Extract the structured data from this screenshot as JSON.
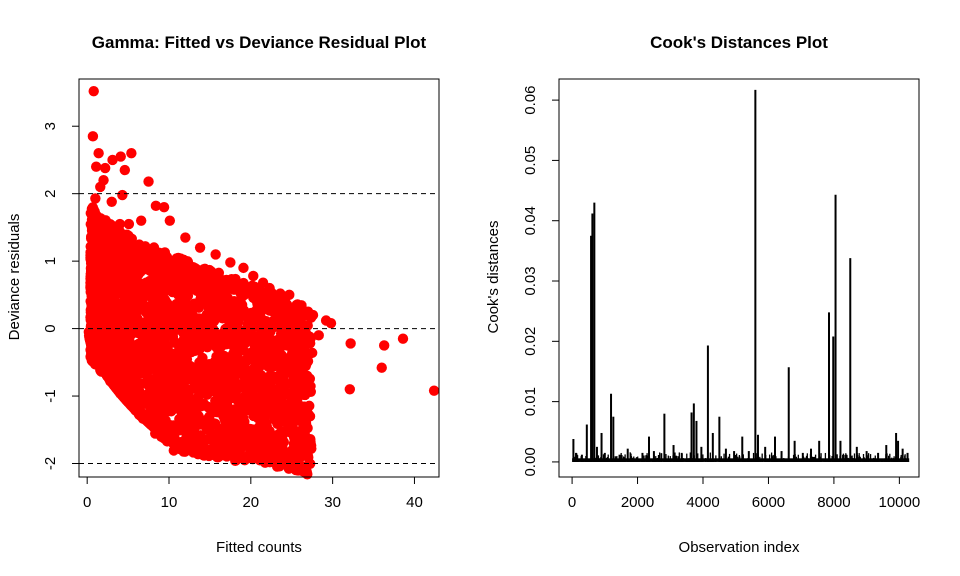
{
  "chart_data": [
    {
      "type": "scatter",
      "title": "Gamma: Fitted vs Deviance Residual Plot",
      "xlabel": "Fitted counts",
      "ylabel": "Deviance residuals",
      "xlim": [
        -1,
        43
      ],
      "ylim": [
        -2.2,
        3.7
      ],
      "xticks": [
        0,
        10,
        20,
        30,
        40
      ],
      "yticks": [
        -2,
        -1,
        0,
        1,
        2,
        3
      ],
      "ytick_labels": [
        "-2",
        "-1",
        "0",
        "1",
        "2",
        "3"
      ],
      "reference_lines": [
        -2,
        0,
        2
      ],
      "point_color": "#ff0000",
      "grid": false,
      "legend": "none",
      "points": [
        [
          0.8,
          3.52
        ],
        [
          0.7,
          2.85
        ],
        [
          1.4,
          2.6
        ],
        [
          1.1,
          2.4
        ],
        [
          2.2,
          2.38
        ],
        [
          3.1,
          2.5
        ],
        [
          4.1,
          2.55
        ],
        [
          5.4,
          2.6
        ],
        [
          4.6,
          2.35
        ],
        [
          2.0,
          2.2
        ],
        [
          1.6,
          2.1
        ],
        [
          7.5,
          2.18
        ],
        [
          4.3,
          1.98
        ],
        [
          1.0,
          1.93
        ],
        [
          3.0,
          1.88
        ],
        [
          8.4,
          1.82
        ],
        [
          9.4,
          1.8
        ],
        [
          10.1,
          1.6
        ],
        [
          6.6,
          1.6
        ],
        [
          5.1,
          1.55
        ],
        [
          4.0,
          1.55
        ],
        [
          12.0,
          1.35
        ],
        [
          13.8,
          1.2
        ],
        [
          15.7,
          1.1
        ],
        [
          17.5,
          0.98
        ],
        [
          19.1,
          0.9
        ],
        [
          20.3,
          0.78
        ],
        [
          21.5,
          0.68
        ],
        [
          22.3,
          0.6
        ],
        [
          23.6,
          0.52
        ],
        [
          24.7,
          0.5
        ],
        [
          25.6,
          0.35
        ],
        [
          26.2,
          0.32
        ],
        [
          27.6,
          0.2
        ],
        [
          29.2,
          0.12
        ],
        [
          29.8,
          0.08
        ],
        [
          28.3,
          -0.1
        ],
        [
          27.2,
          -0.12
        ],
        [
          26.4,
          -0.2
        ],
        [
          25.2,
          -0.22
        ],
        [
          23.6,
          -0.28
        ],
        [
          22.3,
          -0.38
        ],
        [
          21.5,
          -0.5
        ],
        [
          20.3,
          -0.6
        ],
        [
          19.2,
          -0.66
        ],
        [
          17.6,
          -0.72
        ],
        [
          16.1,
          -0.8
        ],
        [
          27.5,
          -0.36
        ],
        [
          26.3,
          -0.48
        ],
        [
          25.4,
          -0.58
        ],
        [
          24.1,
          -0.63
        ],
        [
          22.1,
          -0.72
        ],
        [
          18.5,
          -0.85
        ],
        [
          14.6,
          -0.86
        ],
        [
          15.3,
          -0.8
        ],
        [
          13.1,
          -0.82
        ],
        [
          12.6,
          -1.3
        ],
        [
          11.8,
          -1.35
        ],
        [
          11.3,
          -1.75
        ],
        [
          10.5,
          -1.7
        ],
        [
          27.0,
          -0.85
        ],
        [
          23.5,
          -1.0
        ],
        [
          32.2,
          -0.22
        ],
        [
          32.1,
          -0.9
        ],
        [
          36.3,
          -0.25
        ],
        [
          36.0,
          -0.58
        ],
        [
          38.6,
          -0.15
        ],
        [
          42.4,
          -0.92
        ],
        [
          26.9,
          -2.16
        ]
      ]
    },
    {
      "type": "line",
      "title": "Cook's Distances Plot",
      "xlabel": "Observation index",
      "ylabel": "Cook's distances",
      "xlim": [
        -400,
        10600
      ],
      "ylim": [
        -0.0025,
        0.0635
      ],
      "xticks": [
        0,
        2000,
        4000,
        6000,
        8000,
        10000
      ],
      "yticks": [
        0.0,
        0.01,
        0.02,
        0.03,
        0.04,
        0.05,
        0.06
      ],
      "ytick_labels": [
        "0.00",
        "0.01",
        "0.02",
        "0.03",
        "0.04",
        "0.05",
        "0.06"
      ],
      "line_color": "#000000",
      "grid": false,
      "legend": "none",
      "spikes": [
        [
          40,
          0.0038
        ],
        [
          120,
          0.0015
        ],
        [
          300,
          0.0012
        ],
        [
          450,
          0.0062
        ],
        [
          580,
          0.0375
        ],
        [
          620,
          0.0412
        ],
        [
          680,
          0.043
        ],
        [
          760,
          0.0025
        ],
        [
          900,
          0.0048
        ],
        [
          1000,
          0.0015
        ],
        [
          1190,
          0.0113
        ],
        [
          1260,
          0.0075
        ],
        [
          1450,
          0.0012
        ],
        [
          1700,
          0.0022
        ],
        [
          2150,
          0.0015
        ],
        [
          2350,
          0.0042
        ],
        [
          2500,
          0.0018
        ],
        [
          2820,
          0.008
        ],
        [
          3100,
          0.0028
        ],
        [
          3350,
          0.0015
        ],
        [
          3650,
          0.0082
        ],
        [
          3720,
          0.0097
        ],
        [
          3800,
          0.0068
        ],
        [
          3950,
          0.0025
        ],
        [
          4150,
          0.0193
        ],
        [
          4300,
          0.0048
        ],
        [
          4500,
          0.0075
        ],
        [
          4700,
          0.0022
        ],
        [
          4950,
          0.0018
        ],
        [
          5200,
          0.0042
        ],
        [
          5400,
          0.0018
        ],
        [
          5600,
          0.0617
        ],
        [
          5680,
          0.0045
        ],
        [
          5900,
          0.0025
        ],
        [
          6200,
          0.0042
        ],
        [
          6400,
          0.0018
        ],
        [
          6620,
          0.0157
        ],
        [
          6800,
          0.0035
        ],
        [
          7050,
          0.0015
        ],
        [
          7300,
          0.0022
        ],
        [
          7550,
          0.0035
        ],
        [
          7850,
          0.0248
        ],
        [
          7980,
          0.0208
        ],
        [
          8050,
          0.0443
        ],
        [
          8200,
          0.0035
        ],
        [
          8500,
          0.0338
        ],
        [
          8700,
          0.0025
        ],
        [
          9000,
          0.0018
        ],
        [
          9350,
          0.0015
        ],
        [
          9600,
          0.0028
        ],
        [
          9900,
          0.0048
        ],
        [
          9960,
          0.0035
        ],
        [
          10100,
          0.0022
        ],
        [
          10250,
          0.0015
        ]
      ]
    }
  ]
}
